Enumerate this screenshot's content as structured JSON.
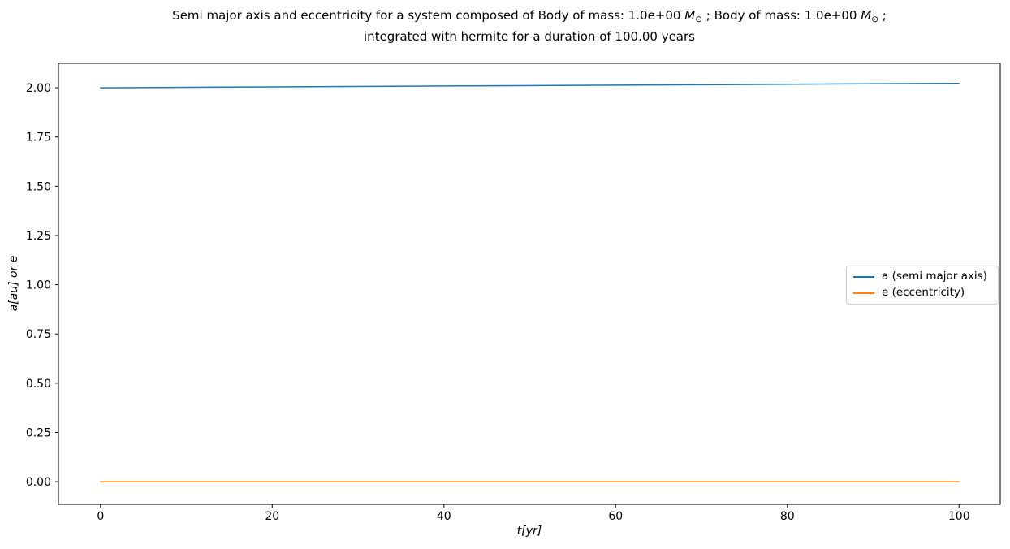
{
  "figure": {
    "background": "#ffffff",
    "title": {
      "plain": "Semi major axis and eccentricity for a system composed of Body of mass: 1.0e+00 M⊙ ; Body of mass: 1.0e+00 M⊙ ; integrated with hermite for a duration of 100.00 years",
      "lines": [
        {
          "parts": [
            {
              "text": "Semi major axis and eccentricity for a system composed of Body of mass: 1.0e+00 ",
              "style": "plain"
            },
            {
              "text": "M",
              "style": "var"
            },
            {
              "text": "⊙",
              "style": "sub"
            },
            {
              "text": " ; Body of mass: 1.0e+00 ",
              "style": "plain"
            },
            {
              "text": "M",
              "style": "var"
            },
            {
              "text": "⊙",
              "style": "sub"
            },
            {
              "text": " ;",
              "style": "plain"
            }
          ]
        },
        {
          "parts": [
            {
              "text": "integrated with hermite for a duration of 100.00 years",
              "style": "plain"
            }
          ]
        }
      ]
    }
  },
  "chart_data": {
    "type": "line",
    "title": "Semi major axis and eccentricity for a system composed of Body of mass: 1.0e+00 M⊙ ; Body of mass: 1.0e+00 M⊙ ; integrated with hermite for a duration of 100.00 years",
    "xlabel": "t[yr]",
    "ylabel": "a[au] or e",
    "xlim": [
      -4.9,
      104.8
    ],
    "ylim": [
      -0.115,
      2.124
    ],
    "xticks": {
      "values": [
        0,
        20,
        40,
        60,
        80,
        100
      ],
      "labels": [
        "0",
        "20",
        "40",
        "60",
        "80",
        "100"
      ]
    },
    "yticks": {
      "values": [
        0.0,
        0.25,
        0.5,
        0.75,
        1.0,
        1.25,
        1.5,
        1.75,
        2.0
      ],
      "labels": [
        "0.00",
        "0.25",
        "0.50",
        "0.75",
        "1.00",
        "1.25",
        "1.50",
        "1.75",
        "2.00"
      ]
    },
    "x": [
      0,
      20,
      40,
      60,
      80,
      100
    ],
    "series": [
      {
        "name": "a (semi major axis)",
        "color": "#1f77b4",
        "values": [
          2.0,
          2.0044,
          2.0088,
          2.0132,
          2.0176,
          2.022
        ]
      },
      {
        "name": "e (eccentricity)",
        "color": "#ff7f0e",
        "values": [
          0.0,
          0.0,
          0.0,
          0.0,
          0.0,
          0.0
        ]
      }
    ],
    "legend": {
      "position": "center right",
      "frame": true,
      "edge_color": "#cccccc"
    },
    "grid": false,
    "line_width": 1.5,
    "frame_color": "#000000",
    "tick_color": "#000000"
  }
}
